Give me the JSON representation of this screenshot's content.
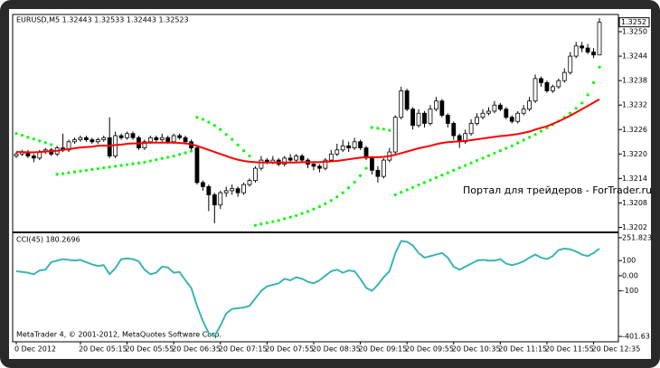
{
  "chart_data": [
    {
      "type": "candlestick",
      "title": "EURUSD,M5  1.32443 1.32533 1.32443 1.32523",
      "watermark": "Портал для трейдеров - ForTrader.ru",
      "categories": [
        "0 Dec 2012",
        null,
        null,
        null,
        null,
        null,
        null,
        null,
        null,
        null,
        null,
        "20 Dec 05:15",
        null,
        null,
        null,
        null,
        null,
        null,
        null,
        "20 Dec 05:55",
        null,
        null,
        null,
        null,
        null,
        null,
        null,
        "20 Dec 06:35",
        null,
        null,
        null,
        null,
        null,
        null,
        null,
        "20 Dec 07:15",
        null,
        null,
        null,
        null,
        null,
        null,
        null,
        "20 Dec 07:55",
        null,
        null,
        null,
        null,
        null,
        null,
        null,
        "20 Dec 08:35",
        null,
        null,
        null,
        null,
        null,
        null,
        null,
        "20 Dec 09:15",
        null,
        null,
        null,
        null,
        null,
        null,
        null,
        "20 Dec 09:55",
        null,
        null,
        null,
        null,
        null,
        null,
        null,
        "20 Dec 10:35",
        null,
        null,
        null,
        null,
        null,
        null,
        null,
        "20 Dec 11:15",
        null,
        null,
        null,
        null,
        null,
        null,
        null,
        "20 Dec 11:55",
        null,
        null,
        null,
        null,
        null,
        null,
        null,
        "20 Dec 12:35",
        null
      ],
      "open": [
        1.32195,
        1.322,
        1.32205,
        1.32195,
        1.3219,
        1.32205,
        1.3221,
        1.322,
        1.32215,
        1.3221,
        1.3223,
        1.32235,
        1.3224,
        1.32235,
        1.3223,
        1.32235,
        1.3224,
        1.32195,
        1.32245,
        1.3224,
        1.3225,
        1.3224,
        1.32215,
        1.3223,
        1.3224,
        1.32235,
        1.3224,
        1.3223,
        1.32245,
        1.3224,
        1.3223,
        1.32215,
        1.3213,
        1.3212,
        1.321,
        1.32075,
        1.32105,
        1.3211,
        1.32115,
        1.32105,
        1.32125,
        1.32135,
        1.32165,
        1.32185,
        1.3218,
        1.32185,
        1.32175,
        1.3219,
        1.32185,
        1.32195,
        1.32185,
        1.32175,
        1.3217,
        1.32165,
        1.32185,
        1.322,
        1.3221,
        1.3222,
        1.32215,
        1.3223,
        1.32215,
        1.3219,
        1.3216,
        1.32145,
        1.32185,
        1.32205,
        1.3229,
        1.32355,
        1.3231,
        1.3227,
        1.323,
        1.32275,
        1.3231,
        1.3233,
        1.32295,
        1.32275,
        1.32245,
        1.3223,
        1.3225,
        1.32275,
        1.3229,
        1.323,
        1.32305,
        1.3232,
        1.3231,
        1.3229,
        1.3228,
        1.323,
        1.3231,
        1.3233,
        1.32385,
        1.32375,
        1.32355,
        1.32365,
        1.3238,
        1.324,
        1.3244,
        1.32465,
        1.3246,
        1.3245,
        1.32443
      ],
      "high": [
        1.32205,
        1.3221,
        1.3221,
        1.322,
        1.3221,
        1.32215,
        1.32215,
        1.3222,
        1.3225,
        1.32235,
        1.3224,
        1.32245,
        1.32245,
        1.3224,
        1.3224,
        1.32245,
        1.3229,
        1.32255,
        1.3225,
        1.32255,
        1.32255,
        1.32245,
        1.32235,
        1.32245,
        1.32245,
        1.3225,
        1.32245,
        1.3225,
        1.3225,
        1.32245,
        1.32235,
        1.3222,
        1.32135,
        1.32125,
        1.32105,
        1.3211,
        1.3212,
        1.32125,
        1.3212,
        1.3213,
        1.3214,
        1.3217,
        1.32195,
        1.3219,
        1.32195,
        1.3219,
        1.32195,
        1.322,
        1.322,
        1.322,
        1.3219,
        1.3218,
        1.32175,
        1.3219,
        1.3221,
        1.32225,
        1.32235,
        1.3223,
        1.3224,
        1.32235,
        1.3222,
        1.32195,
        1.3217,
        1.3219,
        1.32215,
        1.32295,
        1.32365,
        1.3236,
        1.32315,
        1.3231,
        1.32305,
        1.3232,
        1.3234,
        1.32335,
        1.323,
        1.3228,
        1.3225,
        1.3226,
        1.32285,
        1.323,
        1.3231,
        1.32315,
        1.3233,
        1.32325,
        1.32315,
        1.32295,
        1.32305,
        1.3232,
        1.3234,
        1.32395,
        1.3239,
        1.3238,
        1.3237,
        1.32385,
        1.3241,
        1.3245,
        1.32475,
        1.32475,
        1.3247,
        1.3246,
        1.32533
      ],
      "low": [
        1.3219,
        1.32195,
        1.3219,
        1.3218,
        1.32185,
        1.322,
        1.32195,
        1.32195,
        1.32205,
        1.32205,
        1.32225,
        1.3223,
        1.3223,
        1.32225,
        1.32225,
        1.3223,
        1.3219,
        1.3219,
        1.32235,
        1.32235,
        1.32235,
        1.3221,
        1.3221,
        1.32225,
        1.3223,
        1.3223,
        1.32225,
        1.32225,
        1.32235,
        1.32225,
        1.3221,
        1.32125,
        1.3211,
        1.3206,
        1.3203,
        1.32065,
        1.32095,
        1.321,
        1.32095,
        1.321,
        1.3212,
        1.3213,
        1.3216,
        1.32175,
        1.32175,
        1.3217,
        1.3217,
        1.3218,
        1.3218,
        1.3218,
        1.32165,
        1.3216,
        1.32155,
        1.3216,
        1.3218,
        1.32195,
        1.32205,
        1.32205,
        1.3221,
        1.3221,
        1.32185,
        1.3215,
        1.3213,
        1.3214,
        1.3218,
        1.322,
        1.32285,
        1.32305,
        1.3226,
        1.32265,
        1.32265,
        1.3227,
        1.32305,
        1.3229,
        1.32265,
        1.32235,
        1.32215,
        1.32225,
        1.32245,
        1.3227,
        1.32285,
        1.32295,
        1.323,
        1.32305,
        1.32285,
        1.32275,
        1.32275,
        1.32295,
        1.32305,
        1.32325,
        1.32365,
        1.3235,
        1.3235,
        1.3236,
        1.32375,
        1.32395,
        1.32435,
        1.3245,
        1.32445,
        1.32435,
        1.32443
      ],
      "close": [
        1.322,
        1.32205,
        1.32195,
        1.3219,
        1.32205,
        1.3221,
        1.322,
        1.32215,
        1.3221,
        1.3223,
        1.32235,
        1.3224,
        1.32235,
        1.3223,
        1.32235,
        1.3224,
        1.32195,
        1.32245,
        1.3224,
        1.3225,
        1.3224,
        1.32215,
        1.3223,
        1.3224,
        1.32235,
        1.3224,
        1.3223,
        1.32245,
        1.3224,
        1.3223,
        1.32215,
        1.3213,
        1.3212,
        1.321,
        1.32075,
        1.32105,
        1.3211,
        1.32115,
        1.32105,
        1.32125,
        1.32135,
        1.32165,
        1.32185,
        1.3218,
        1.32185,
        1.32175,
        1.3219,
        1.32185,
        1.32195,
        1.32185,
        1.32175,
        1.3217,
        1.32165,
        1.32185,
        1.322,
        1.3221,
        1.3222,
        1.32215,
        1.3223,
        1.32215,
        1.3219,
        1.3216,
        1.32145,
        1.32185,
        1.32205,
        1.3229,
        1.32355,
        1.3231,
        1.3227,
        1.323,
        1.32275,
        1.3231,
        1.3233,
        1.32295,
        1.32275,
        1.32245,
        1.3223,
        1.3225,
        1.32275,
        1.3229,
        1.323,
        1.32305,
        1.3232,
        1.3231,
        1.3229,
        1.3228,
        1.323,
        1.3231,
        1.3233,
        1.32385,
        1.32375,
        1.32355,
        1.32365,
        1.3238,
        1.324,
        1.3244,
        1.32465,
        1.3246,
        1.3245,
        1.32443,
        1.32523
      ],
      "up_color": "#ffffff",
      "down_color": "#000000",
      "series": [
        {
          "type": "line",
          "color": "#ff0000",
          "values": [
            1.32205,
            1.32205,
            1.32204,
            1.32204,
            1.32205,
            1.32206,
            1.32207,
            1.32208,
            1.3221,
            1.32212,
            1.32214,
            1.32216,
            1.32217,
            1.32218,
            1.3222,
            1.32221,
            1.3222,
            1.32222,
            1.32223,
            1.32225,
            1.32226,
            1.32226,
            1.32227,
            1.32228,
            1.32228,
            1.32228,
            1.32228,
            1.32228,
            1.32227,
            1.32226,
            1.32224,
            1.3222,
            1.32215,
            1.3221,
            1.32205,
            1.322,
            1.32195,
            1.3219,
            1.32186,
            1.32183,
            1.32181,
            1.3218,
            1.32179,
            1.32179,
            1.32179,
            1.32179,
            1.32179,
            1.32179,
            1.32179,
            1.3218,
            1.3218,
            1.3218,
            1.3218,
            1.32181,
            1.32182,
            1.32183,
            1.32185,
            1.32187,
            1.32189,
            1.32191,
            1.32192,
            1.32192,
            1.32192,
            1.32193,
            1.32195,
            1.32198,
            1.32202,
            1.32206,
            1.3221,
            1.32214,
            1.32217,
            1.3222,
            1.32224,
            1.32227,
            1.32229,
            1.3223,
            1.32231,
            1.32232,
            1.32234,
            1.32236,
            1.32238,
            1.3224,
            1.32242,
            1.32244,
            1.32245,
            1.32247,
            1.32249,
            1.32252,
            1.32255,
            1.3226,
            1.32264,
            1.32268,
            1.32274,
            1.3228,
            1.32287,
            1.32294,
            1.32302,
            1.3231,
            1.32318,
            1.32326,
            1.32334
          ]
        },
        {
          "type": "dots",
          "color": "#00ff00",
          "values": [
            1.3225,
            1.32246,
            1.32241,
            1.32237,
            1.32232,
            1.32228,
            1.32223,
            1.3215,
            1.32152,
            1.32154,
            1.32156,
            1.32158,
            1.3216,
            1.32162,
            1.32164,
            1.32166,
            1.32168,
            1.3217,
            1.32172,
            1.32174,
            1.32176,
            1.32178,
            1.3218,
            1.32183,
            1.32186,
            1.32189,
            1.32192,
            1.32195,
            1.32199,
            1.32203,
            1.32207,
            1.3229,
            1.32285,
            1.32278,
            1.3227,
            1.3226,
            1.32248,
            1.32236,
            1.32222,
            1.32208,
            1.32195,
            1.32025,
            1.32028,
            1.32031,
            1.32034,
            1.32037,
            1.32041,
            1.32045,
            1.32049,
            1.32054,
            1.32059,
            1.32065,
            1.32071,
            1.32078,
            1.32086,
            1.32095,
            1.32105,
            1.32117,
            1.32131,
            1.32147,
            1.32165,
            1.32265,
            1.32263,
            1.32261,
            1.32258,
            1.321,
            1.32106,
            1.32112,
            1.32118,
            1.32124,
            1.3213,
            1.32136,
            1.32142,
            1.32148,
            1.32154,
            1.3216,
            1.32166,
            1.32172,
            1.32178,
            1.32184,
            1.3219,
            1.32196,
            1.32202,
            1.32208,
            1.32214,
            1.3222,
            1.32227,
            1.32234,
            1.32241,
            1.32248,
            1.32256,
            1.32264,
            1.32272,
            1.32281,
            1.3229,
            1.323,
            1.32312,
            1.32325,
            1.32345,
            1.32375,
            1.32413
          ]
        }
      ],
      "ylim": [
        1.3201,
        1.3254
      ],
      "yticks": [
        {
          "value": 1.325,
          "label": "1.3250"
        },
        {
          "value": 1.3244,
          "label": "1.3244"
        },
        {
          "value": 1.3238,
          "label": "1.3238"
        },
        {
          "value": 1.3232,
          "label": "1.3232"
        },
        {
          "value": 1.3226,
          "label": "1.3226"
        },
        {
          "value": 1.322,
          "label": "1.3220"
        },
        {
          "value": 1.3214,
          "label": "1.3214"
        },
        {
          "value": 1.3208,
          "label": "1.3208"
        },
        {
          "value": 1.3202,
          "label": "1.3202"
        }
      ],
      "price_marker": {
        "value": 1.32523,
        "label": "1.3252"
      }
    },
    {
      "type": "line",
      "title": "CCI(45) 180.2696",
      "footer": "MetaTrader 4, © 2001-2012, MetaQuotes Software Corp.",
      "series": [
        {
          "color": "#3cb4b4",
          "values": [
            30,
            25,
            20,
            10,
            35,
            40,
            90,
            100,
            110,
            105,
            100,
            105,
            90,
            75,
            65,
            70,
            10,
            50,
            110,
            115,
            110,
            95,
            40,
            10,
            20,
            60,
            55,
            20,
            25,
            -30,
            -80,
            -200,
            -300,
            -380,
            -400,
            -330,
            -250,
            -220,
            -215,
            -210,
            -200,
            -150,
            -100,
            -70,
            -60,
            -50,
            -20,
            -30,
            -10,
            -20,
            -40,
            -50,
            -30,
            0,
            30,
            40,
            20,
            35,
            30,
            -20,
            -80,
            -100,
            -60,
            -10,
            30,
            150,
            230,
            225,
            200,
            150,
            120,
            130,
            140,
            150,
            120,
            60,
            40,
            60,
            80,
            100,
            105,
            100,
            100,
            110,
            80,
            70,
            80,
            95,
            120,
            140,
            120,
            110,
            130,
            170,
            180,
            175,
            160,
            140,
            130,
            150,
            180
          ]
        }
      ],
      "ylim": [
        -437,
        275
      ],
      "yticks": [
        251.823,
        100,
        {
          "value": 0,
          "label": "0.00"
        },
        -100,
        -401.63
      ]
    }
  ]
}
